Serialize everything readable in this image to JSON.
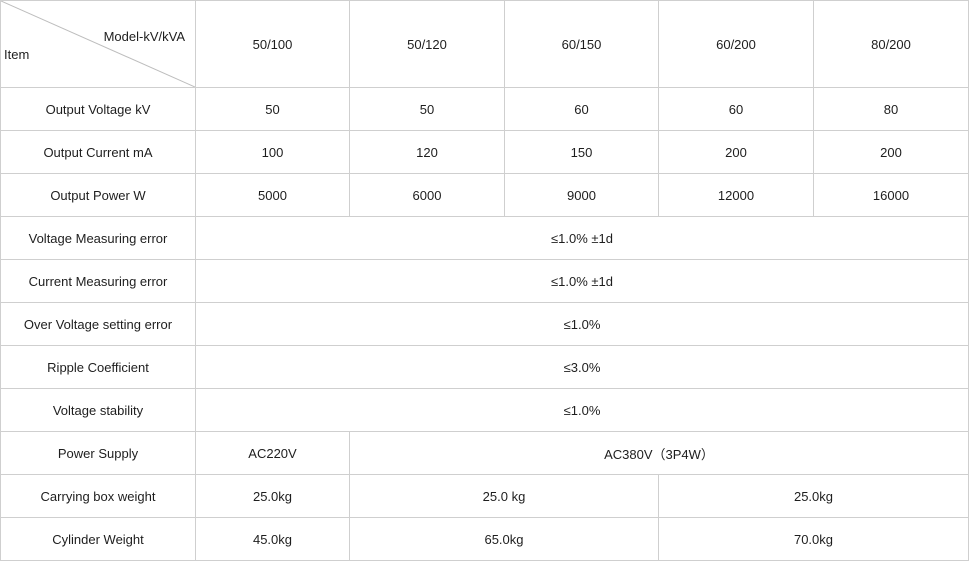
{
  "header": {
    "corner_item": "Item",
    "corner_model": "Model-kV/kVA",
    "models": [
      "50/100",
      "50/120",
      "60/150",
      "60/200",
      "80/200"
    ]
  },
  "rows": {
    "output_voltage": {
      "label": "Output Voltage kV",
      "values": [
        "50",
        "50",
        "60",
        "60",
        "80"
      ]
    },
    "output_current": {
      "label": "Output Current mA",
      "values": [
        "100",
        "120",
        "150",
        "200",
        "200"
      ]
    },
    "output_power": {
      "label": "Output Power W",
      "values": [
        "5000",
        "6000",
        "9000",
        "12000",
        "16000"
      ]
    },
    "voltage_error": {
      "label": "Voltage Measuring error",
      "value": "≤1.0% ±1d"
    },
    "current_error": {
      "label": "Current Measuring error",
      "value": "≤1.0% ±1d"
    },
    "overvoltage_error": {
      "label": "Over Voltage setting error",
      "value": "≤1.0%"
    },
    "ripple": {
      "label": "Ripple Coefficient",
      "value": "≤3.0%"
    },
    "stability": {
      "label": "Voltage stability",
      "value": "≤1.0%"
    },
    "power_supply": {
      "label": "Power Supply",
      "values": [
        "AC220V",
        "AC380V（3P4W）"
      ]
    },
    "box_weight": {
      "label": "Carrying box weight",
      "values": [
        "25.0kg",
        "25.0 kg",
        "25.0kg"
      ]
    },
    "cylinder_weight": {
      "label": "Cylinder Weight",
      "values": [
        "45.0kg",
        "65.0kg",
        "70.0kg"
      ]
    }
  }
}
